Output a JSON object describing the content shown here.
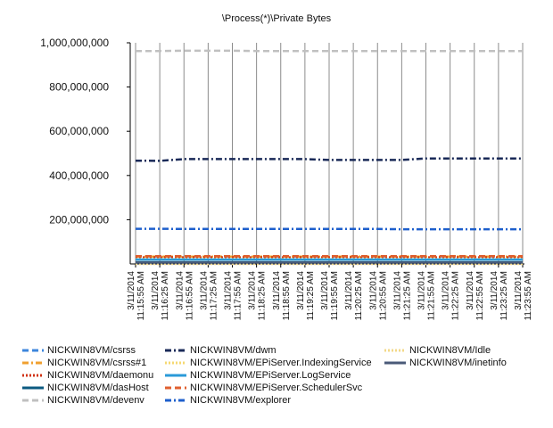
{
  "chart_data": {
    "type": "line",
    "title": "\\Process(*)\\Private Bytes",
    "xlabel": "",
    "ylabel": "",
    "ylim": [
      0,
      1000000000
    ],
    "yticks": [
      {
        "value": 200000000,
        "label": "200,000,000"
      },
      {
        "value": 400000000,
        "label": "400,000,000"
      },
      {
        "value": 600000000,
        "label": "600,000,000"
      },
      {
        "value": 800000000,
        "label": "800,000,000"
      },
      {
        "value": 1000000000,
        "label": "1,000,000,000"
      }
    ],
    "grid": "vertical",
    "legend_position": "bottom",
    "categories": [
      {
        "date": "3/11/2014",
        "time": "11:15:55 AM"
      },
      {
        "date": "3/11/2014",
        "time": "11:16:25 AM"
      },
      {
        "date": "3/11/2014",
        "time": "11:16:55 AM"
      },
      {
        "date": "3/11/2014",
        "time": "11:17:25 AM"
      },
      {
        "date": "3/11/2014",
        "time": "11:17:55 AM"
      },
      {
        "date": "3/11/2014",
        "time": "11:18:25 AM"
      },
      {
        "date": "3/11/2014",
        "time": "11:18:55 AM"
      },
      {
        "date": "3/11/2014",
        "time": "11:19:25 AM"
      },
      {
        "date": "3/11/2014",
        "time": "11:19:55 AM"
      },
      {
        "date": "3/11/2014",
        "time": "11:20:25 AM"
      },
      {
        "date": "3/11/2014",
        "time": "11:20:55 AM"
      },
      {
        "date": "3/11/2014",
        "time": "11:21:25 AM"
      },
      {
        "date": "3/11/2014",
        "time": "11:21:55 AM"
      },
      {
        "date": "3/11/2014",
        "time": "11:22:25 AM"
      },
      {
        "date": "3/11/2014",
        "time": "11:22:55 AM"
      },
      {
        "date": "3/11/2014",
        "time": "11:23:25 AM"
      },
      {
        "date": "3/11/2014",
        "time": "11:23:55 AM"
      }
    ],
    "series": [
      {
        "name": "NICKWIN8VM/csrss",
        "color": "#3d86dc",
        "dash": "dash",
        "values": [
          34000000,
          34000000,
          34000000,
          34000000,
          34000000,
          34000000,
          34000000,
          34000000,
          34000000,
          34000000,
          34000000,
          34000000,
          34000000,
          34000000,
          34000000,
          34000000,
          34000000
        ]
      },
      {
        "name": "NICKWIN8VM/csrss#1",
        "color": "#f0a030",
        "dash": "dashdot",
        "values": [
          33000000,
          33000000,
          33000000,
          33000000,
          33000000,
          33000000,
          33000000,
          33000000,
          33000000,
          33000000,
          33000000,
          33000000,
          33000000,
          33000000,
          33000000,
          33000000,
          33000000
        ]
      },
      {
        "name": "NICKWIN8VM/daemonu",
        "color": "#d03010",
        "dash": "dot",
        "values": [
          30000000,
          30000000,
          30000000,
          30000000,
          30000000,
          30000000,
          30000000,
          30000000,
          30000000,
          30000000,
          30000000,
          30000000,
          30000000,
          30000000,
          30000000,
          30000000,
          30000000
        ]
      },
      {
        "name": "NICKWIN8VM/dasHost",
        "color": "#0b5a80",
        "dash": "solid",
        "values": [
          8000000,
          8000000,
          8000000,
          8000000,
          8000000,
          8000000,
          8000000,
          8000000,
          8000000,
          8000000,
          8000000,
          8000000,
          8000000,
          8000000,
          8000000,
          8000000,
          8000000
        ]
      },
      {
        "name": "NICKWIN8VM/devenv",
        "color": "#c0c0c0",
        "dash": "dash",
        "values": [
          963000000,
          963000000,
          964000000,
          964000000,
          964000000,
          963000000,
          963000000,
          963000000,
          963000000,
          963000000,
          963000000,
          963000000,
          963000000,
          963000000,
          963000000,
          963000000,
          963000000
        ]
      },
      {
        "name": "NICKWIN8VM/dwm",
        "color": "#1a2a58",
        "dash": "dashdot",
        "values": [
          467000000,
          466000000,
          474000000,
          474000000,
          474000000,
          474000000,
          474000000,
          474000000,
          470000000,
          470000000,
          470000000,
          470000000,
          477000000,
          477000000,
          477000000,
          477000000,
          477000000
        ]
      },
      {
        "name": "NICKWIN8VM/EPiServer.IndexingService",
        "color": "#f5d870",
        "dash": "dot",
        "values": [
          22000000,
          22000000,
          22000000,
          22000000,
          22000000,
          22000000,
          22000000,
          22000000,
          22000000,
          22000000,
          22000000,
          22000000,
          22000000,
          22000000,
          22000000,
          22000000,
          22000000
        ]
      },
      {
        "name": "NICKWIN8VM/EPiServer.LogService",
        "color": "#2a9ad8",
        "dash": "solid",
        "values": [
          20000000,
          20000000,
          20000000,
          20000000,
          20000000,
          20000000,
          20000000,
          20000000,
          20000000,
          20000000,
          20000000,
          20000000,
          20000000,
          20000000,
          20000000,
          20000000,
          20000000
        ]
      },
      {
        "name": "NICKWIN8VM/EPiServer.SchedulerSvc",
        "color": "#e06030",
        "dash": "dash",
        "values": [
          35000000,
          35000000,
          35000000,
          35000000,
          35000000,
          35000000,
          35000000,
          35000000,
          35000000,
          35000000,
          35000000,
          35000000,
          35000000,
          35000000,
          35000000,
          35000000,
          35000000
        ]
      },
      {
        "name": "NICKWIN8VM/explorer",
        "color": "#1e5fcc",
        "dash": "dashdot",
        "values": [
          159000000,
          159000000,
          158000000,
          158000000,
          158000000,
          158000000,
          158000000,
          158000000,
          158000000,
          158000000,
          158000000,
          157000000,
          157000000,
          157000000,
          157000000,
          157000000,
          157000000
        ]
      },
      {
        "name": "NICKWIN8VM/Idle",
        "color": "#f3d888",
        "dash": "dot",
        "values": [
          0,
          0,
          0,
          0,
          0,
          0,
          0,
          0,
          0,
          0,
          0,
          0,
          0,
          0,
          0,
          0,
          0
        ]
      },
      {
        "name": "NICKWIN8VM/inetinfo",
        "color": "#4a5a78",
        "dash": "solid",
        "values": [
          6000000,
          6000000,
          6000000,
          6000000,
          6000000,
          6000000,
          6000000,
          6000000,
          6000000,
          6000000,
          6000000,
          6000000,
          6000000,
          6000000,
          6000000,
          6000000,
          6000000
        ]
      }
    ]
  }
}
